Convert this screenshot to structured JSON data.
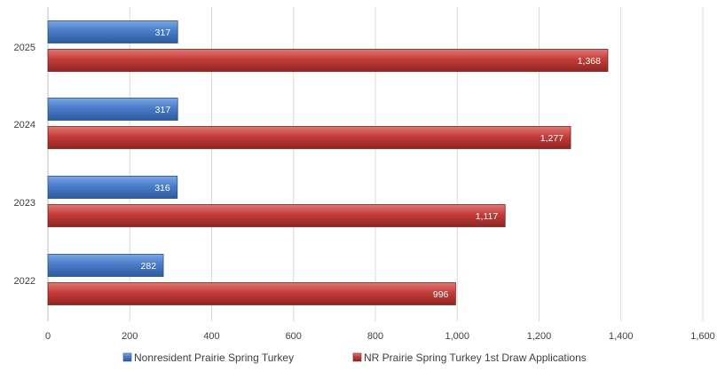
{
  "chart_data": {
    "type": "bar",
    "orientation": "horizontal",
    "categories": [
      "2025",
      "2024",
      "2023",
      "2022"
    ],
    "series": [
      {
        "name": "Nonresident Prairie Spring Turkey",
        "values": [
          317,
          317,
          316,
          282
        ],
        "labels": [
          "317",
          "317",
          "316",
          "282"
        ],
        "color": "#4472c4"
      },
      {
        "name": "NR Prairie Spring Turkey 1st Draw Applications",
        "values": [
          1368,
          1277,
          1117,
          996
        ],
        "labels": [
          "1,368",
          "1,277",
          "1,117",
          "996"
        ],
        "color": "#c0504d"
      }
    ],
    "xlim": [
      0,
      1600
    ],
    "xticks": [
      0,
      200,
      400,
      600,
      800,
      1000,
      1200,
      1400,
      1600
    ],
    "xtick_labels": [
      "0",
      "200",
      "400",
      "600",
      "800",
      "1,000",
      "1,200",
      "1,400",
      "1,600"
    ],
    "grid": true,
    "legend_position": "bottom",
    "title": "",
    "xlabel": "",
    "ylabel": ""
  }
}
